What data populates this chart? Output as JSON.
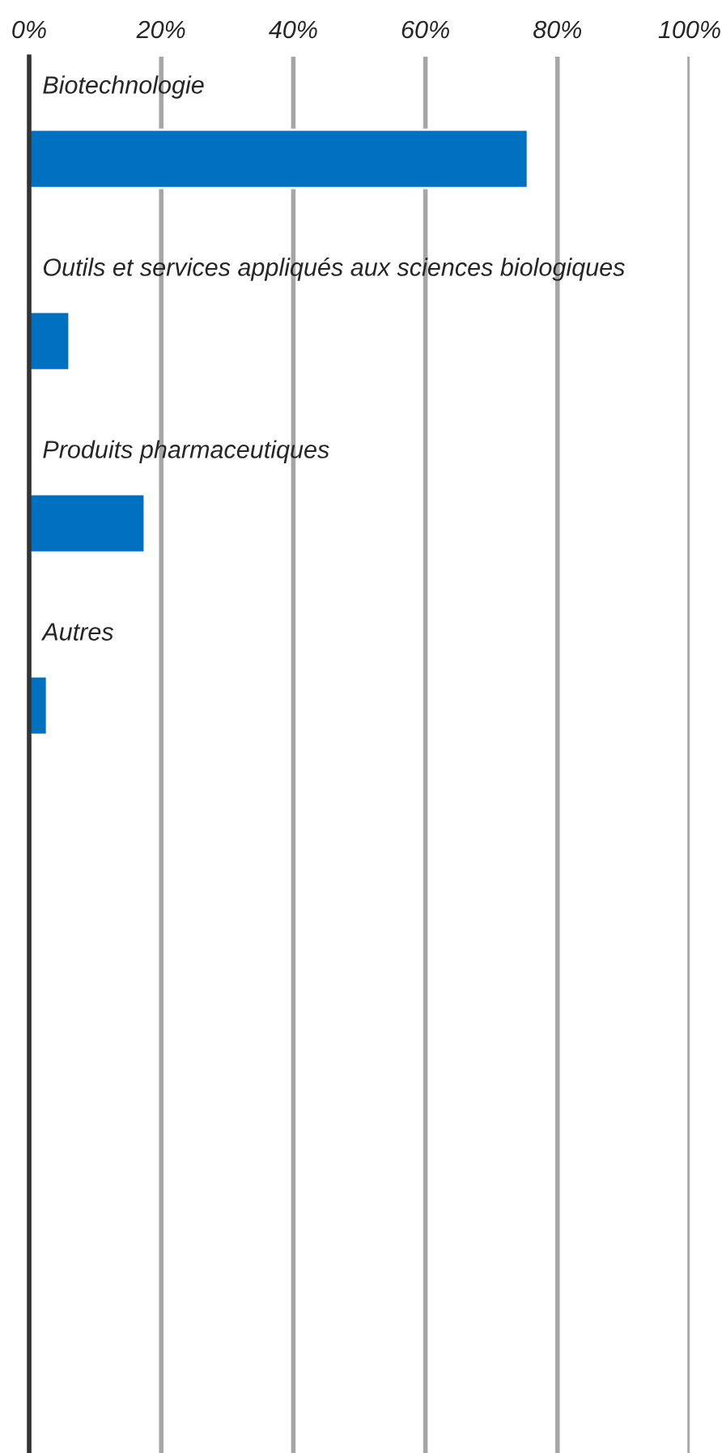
{
  "chart_data": {
    "type": "bar",
    "orientation": "horizontal",
    "categories": [
      "Biotechnologie",
      "Outils et services appliqués aux sciences biologiques",
      "Produits pharmaceutiques",
      "Autres"
    ],
    "values": [
      75.5,
      6.1,
      17.5,
      2.7
    ],
    "color": "#0070c0",
    "xlim": [
      0,
      100
    ],
    "xticks": [
      {
        "value": 0,
        "label": "0%"
      },
      {
        "value": 20,
        "label": "20%"
      },
      {
        "value": 40,
        "label": "40%"
      },
      {
        "value": 60,
        "label": "60%"
      },
      {
        "value": 80,
        "label": "80%"
      },
      {
        "value": 100,
        "label": "100%"
      }
    ],
    "grid": "x"
  }
}
